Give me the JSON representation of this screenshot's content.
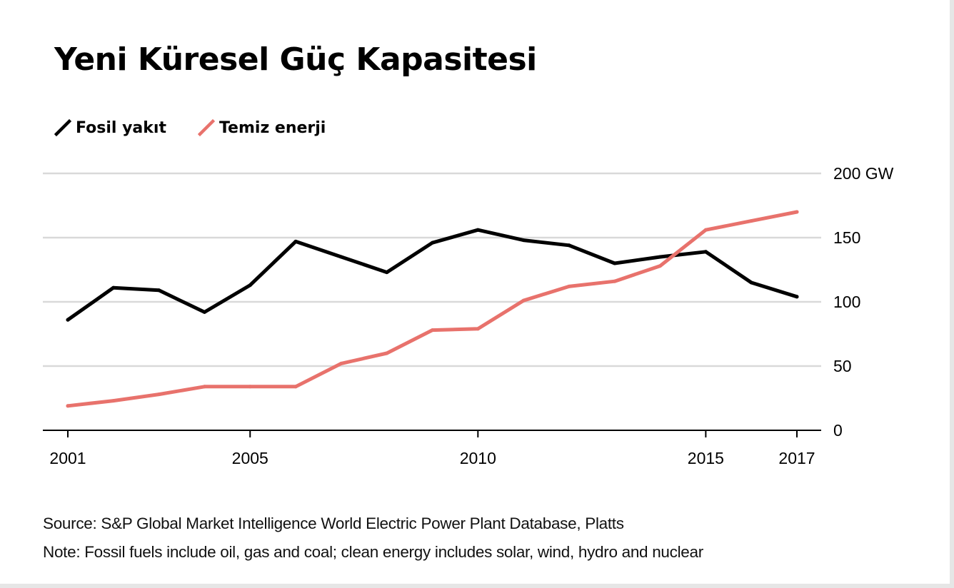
{
  "title": "Yeni Küresel Güç Kapasitesi",
  "legend": [
    {
      "label": "Fosil yakıt",
      "color": "#000000"
    },
    {
      "label": "Temiz enerji",
      "color": "#e8726c"
    }
  ],
  "chart_data": {
    "type": "line",
    "title": "Yeni Küresel Güç Kapasitesi",
    "x": [
      2001,
      2002,
      2003,
      2004,
      2005,
      2006,
      2007,
      2008,
      2009,
      2010,
      2011,
      2012,
      2013,
      2014,
      2015,
      2016,
      2017
    ],
    "series": [
      {
        "name": "Fosil yakıt",
        "color": "#000000",
        "values": [
          86,
          111,
          109,
          92,
          113,
          147,
          135,
          123,
          146,
          156,
          148,
          144,
          130,
          135,
          139,
          115,
          104
        ]
      },
      {
        "name": "Temiz enerji",
        "color": "#e8726c",
        "values": [
          19,
          23,
          28,
          34,
          34,
          34,
          52,
          60,
          78,
          79,
          101,
          112,
          116,
          128,
          156,
          163,
          170
        ]
      }
    ],
    "xticks": [
      {
        "value": 2001,
        "label": "2001"
      },
      {
        "value": 2005,
        "label": "2005"
      },
      {
        "value": 2010,
        "label": "2010"
      },
      {
        "value": 2015,
        "label": "2015"
      },
      {
        "value": 2017,
        "label": "2017"
      }
    ],
    "yticks": [
      {
        "value": 0,
        "label": "0"
      },
      {
        "value": 50,
        "label": "50"
      },
      {
        "value": 100,
        "label": "100"
      },
      {
        "value": 150,
        "label": "150"
      },
      {
        "value": 200,
        "label": "200 GW"
      }
    ],
    "xlim": [
      2001,
      2017
    ],
    "ylim": [
      0,
      200
    ],
    "grid": true,
    "legend_position": "top-left",
    "xlabel": "",
    "ylabel": ""
  },
  "footer": {
    "source": "Source: S&P Global Market Intelligence World Electric Power Plant Database, Platts",
    "note": "Note: Fossil fuels include oil, gas and coal; clean energy includes solar, wind, hydro and nuclear"
  }
}
